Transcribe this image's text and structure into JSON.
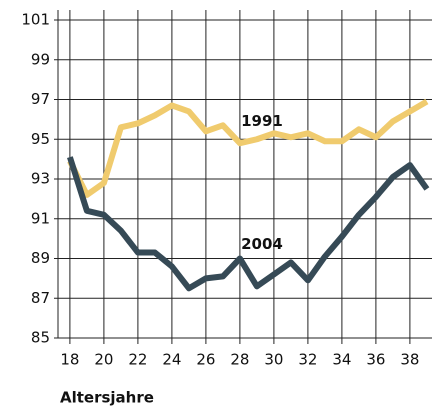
{
  "chart_data": {
    "type": "line",
    "x_label": "Altersjahre",
    "x": [
      18,
      19,
      20,
      21,
      22,
      23,
      24,
      25,
      26,
      27,
      28,
      29,
      30,
      31,
      32,
      33,
      34,
      35,
      36,
      37,
      38,
      39
    ],
    "series": [
      {
        "name": "1991",
        "color": "#f0cb6e",
        "values": [
          93.9,
          92.2,
          92.8,
          95.6,
          95.8,
          96.2,
          96.7,
          96.4,
          95.4,
          95.7,
          94.8,
          95.0,
          95.3,
          95.1,
          95.3,
          94.9,
          94.9,
          95.5,
          95.1,
          95.9,
          96.4,
          96.9
        ]
      },
      {
        "name": "2004",
        "color": "#364a56",
        "values": [
          94.1,
          91.4,
          91.2,
          90.4,
          89.3,
          89.3,
          88.6,
          87.5,
          88.0,
          88.1,
          89.0,
          87.6,
          88.2,
          88.8,
          87.9,
          89.1,
          90.1,
          91.2,
          92.1,
          93.1,
          93.7,
          92.5
        ]
      }
    ],
    "xlim": [
      17.3,
      39.3
    ],
    "xticks": [
      18,
      20,
      22,
      24,
      26,
      28,
      30,
      32,
      34,
      36,
      38
    ],
    "ylim": [
      85,
      101
    ],
    "yticks": [
      85,
      87,
      89,
      91,
      93,
      95,
      97,
      99,
      101
    ],
    "grid": true
  }
}
